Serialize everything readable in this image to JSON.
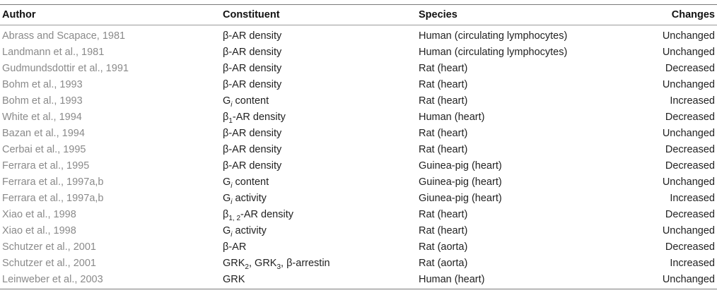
{
  "table": {
    "headers": {
      "author": "Author",
      "constituent": "Constituent",
      "species": "Species",
      "changes": "Changes"
    },
    "rows": [
      {
        "author": "Abrass and Scapace, 1981",
        "constituent": [
          {
            "t": "β-AR density"
          }
        ],
        "species": "Human (circulating lymphocytes)",
        "changes": "Unchanged"
      },
      {
        "author": "Landmann et al., 1981",
        "constituent": [
          {
            "t": "β-AR density"
          }
        ],
        "species": "Human (circulating lymphocytes)",
        "changes": "Unchanged"
      },
      {
        "author": "Gudmundsdottir et al., 1991",
        "constituent": [
          {
            "t": "β-AR density"
          }
        ],
        "species": "Rat (heart)",
        "changes": "Decreased"
      },
      {
        "author": "Bohm et al., 1993",
        "constituent": [
          {
            "t": "β-AR density"
          }
        ],
        "species": "Rat (heart)",
        "changes": "Unchanged"
      },
      {
        "author": "Bohm et al., 1993",
        "constituent": [
          {
            "t": "G"
          },
          {
            "sub": "i",
            "italic": true
          },
          {
            "t": " content"
          }
        ],
        "species": "Rat (heart)",
        "changes": "Increased"
      },
      {
        "author": "White et al., 1994",
        "constituent": [
          {
            "t": "β"
          },
          {
            "sub": "1"
          },
          {
            "t": "-AR density"
          }
        ],
        "species": "Human (heart)",
        "changes": "Decreased"
      },
      {
        "author": "Bazan et al., 1994",
        "constituent": [
          {
            "t": "β-AR density"
          }
        ],
        "species": "Rat (heart)",
        "changes": "Unchanged"
      },
      {
        "author": "Cerbai et al., 1995",
        "constituent": [
          {
            "t": "β-AR density"
          }
        ],
        "species": "Rat (heart)",
        "changes": "Decreased"
      },
      {
        "author": "Ferrara et al., 1995",
        "constituent": [
          {
            "t": "β-AR density"
          }
        ],
        "species": "Guinea-pig (heart)",
        "changes": "Decreased"
      },
      {
        "author": "Ferrara et al., 1997a,b",
        "constituent": [
          {
            "t": "G"
          },
          {
            "sub": "i",
            "italic": true
          },
          {
            "t": " content"
          }
        ],
        "species": "Guinea-pig (heart)",
        "changes": "Unchanged"
      },
      {
        "author": "Ferrara et al., 1997a,b",
        "constituent": [
          {
            "t": "G"
          },
          {
            "sub": "i",
            "italic": true
          },
          {
            "t": " activity"
          }
        ],
        "species": "Giunea-pig (heart)",
        "changes": "Increased"
      },
      {
        "author": "Xiao et al., 1998",
        "constituent": [
          {
            "t": "β"
          },
          {
            "sub": "1, 2"
          },
          {
            "t": "-AR density"
          }
        ],
        "species": "Rat (heart)",
        "changes": "Decreased"
      },
      {
        "author": "Xiao et al., 1998",
        "constituent": [
          {
            "t": "G"
          },
          {
            "sub": "i",
            "italic": true
          },
          {
            "t": " activity"
          }
        ],
        "species": "Rat (heart)",
        "changes": "Unchanged"
      },
      {
        "author": "Schutzer et al., 2001",
        "constituent": [
          {
            "t": "β-AR"
          }
        ],
        "species": "Rat (aorta)",
        "changes": "Decreased"
      },
      {
        "author": "Schutzer et al., 2001",
        "constituent": [
          {
            "t": "GRK"
          },
          {
            "sub": "2"
          },
          {
            "t": ", GRK"
          },
          {
            "sub": "3"
          },
          {
            "t": ", β-arrestin"
          }
        ],
        "species": "Rat (aorta)",
        "changes": "Increased"
      },
      {
        "author": "Leinweber et al., 2003",
        "constituent": [
          {
            "t": "GRK"
          }
        ],
        "species": "Human (heart)",
        "changes": "Unchanged"
      }
    ]
  }
}
